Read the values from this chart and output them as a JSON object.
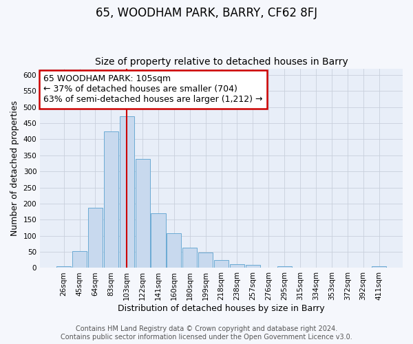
{
  "title": "65, WOODHAM PARK, BARRY, CF62 8FJ",
  "subtitle": "Size of property relative to detached houses in Barry",
  "xlabel": "Distribution of detached houses by size in Barry",
  "ylabel": "Number of detached properties",
  "bar_labels": [
    "26sqm",
    "45sqm",
    "64sqm",
    "83sqm",
    "103sqm",
    "122sqm",
    "141sqm",
    "160sqm",
    "180sqm",
    "199sqm",
    "218sqm",
    "238sqm",
    "257sqm",
    "276sqm",
    "295sqm",
    "315sqm",
    "334sqm",
    "353sqm",
    "372sqm",
    "392sqm",
    "411sqm"
  ],
  "bar_values": [
    5,
    53,
    188,
    425,
    472,
    338,
    170,
    107,
    62,
    47,
    25,
    11,
    10,
    0,
    5,
    0,
    0,
    0,
    0,
    0,
    5
  ],
  "bar_color": "#c8d9ee",
  "bar_edge_color": "#6aaad4",
  "annotation_box_text": "65 WOODHAM PARK: 105sqm\n← 37% of detached houses are smaller (704)\n63% of semi-detached houses are larger (1,212) →",
  "annotation_box_color": "#ffffff",
  "annotation_box_edge_color": "#cc0000",
  "vline_color": "#cc0000",
  "vline_x_index": 4,
  "ylim": [
    0,
    620
  ],
  "yticks": [
    0,
    50,
    100,
    150,
    200,
    250,
    300,
    350,
    400,
    450,
    500,
    550,
    600
  ],
  "footer_line1": "Contains HM Land Registry data © Crown copyright and database right 2024.",
  "footer_line2": "Contains public sector information licensed under the Open Government Licence v3.0.",
  "plot_bg_color": "#e8eef8",
  "fig_bg_color": "#f5f7fc",
  "grid_color": "#c8d0dc",
  "title_fontsize": 12,
  "subtitle_fontsize": 10,
  "label_fontsize": 9,
  "tick_fontsize": 7.5,
  "footer_fontsize": 7,
  "annotation_fontsize": 9
}
